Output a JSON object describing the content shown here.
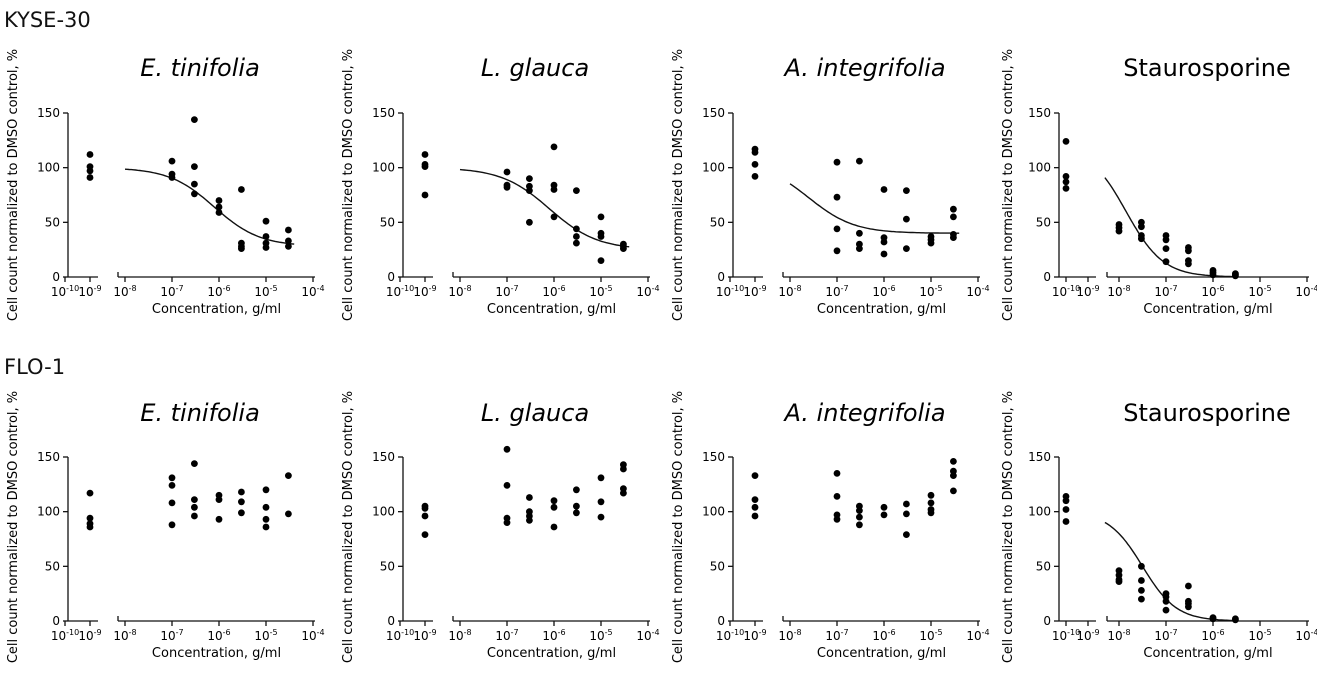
{
  "rows": [
    {
      "label": "KYSE-30",
      "panels": [
        {
          "title": "E. tinifolia",
          "italic": true,
          "fit": "sigmoid",
          "fit_params": {
            "top": 100,
            "bottom": 28,
            "log_ic50": -6.1,
            "hill": 0.9
          }
        },
        {
          "title": "L. glauca",
          "italic": true,
          "fit": "sigmoid",
          "fit_params": {
            "top": 100,
            "bottom": 25,
            "log_ic50": -6.1,
            "hill": 0.85
          }
        },
        {
          "title": "A. integrifolia",
          "italic": true,
          "fit": "sigmoid",
          "fit_params": {
            "top": 105,
            "bottom": 40,
            "log_ic50": -7.6,
            "hill": 0.9
          }
        },
        {
          "title": "Staurosporine",
          "italic": false,
          "fit": "sigmoid",
          "fit_params": {
            "top": 120,
            "bottom": 0,
            "log_ic50": -7.85,
            "hill": 1.1
          }
        }
      ]
    },
    {
      "label": "FLO-1",
      "panels": [
        {
          "title": "E. tinifolia",
          "italic": true,
          "fit": "none"
        },
        {
          "title": "L. glauca",
          "italic": true,
          "fit": "none"
        },
        {
          "title": "A. integrifolia",
          "italic": true,
          "fit": "none"
        },
        {
          "title": "Staurosporine",
          "italic": false,
          "fit": "sigmoid",
          "fit_params": {
            "top": 100,
            "bottom": 0,
            "log_ic50": -7.5,
            "hill": 1.2
          }
        }
      ]
    }
  ],
  "axes": {
    "ylabel": "Cell count normalized to DMSO control, %",
    "xlabel": "Concentration, g/ml",
    "y_ticks": [
      "0",
      "50",
      "100",
      "150"
    ],
    "x_ticks_left": [
      "10",
      "10"
    ],
    "x_ticks_left_exp": [
      "-10",
      "-9"
    ],
    "x_ticks_main": [
      "10",
      "10",
      "10",
      "10",
      "10"
    ],
    "x_ticks_main_exp": [
      "-8",
      "-7",
      "-6",
      "-5",
      "-4"
    ]
  },
  "chart_data": [
    {
      "type": "scatter",
      "title": "E. tinifolia",
      "row": "KYSE-30",
      "xlabel": "Concentration, g/ml",
      "ylabel": "Cell count normalized to DMSO control, %",
      "x_scale": "log",
      "ylim": [
        0,
        150
      ],
      "control_x": 1e-09,
      "points": [
        [
          1e-09,
          112
        ],
        [
          1e-09,
          101
        ],
        [
          1e-09,
          97
        ],
        [
          1e-09,
          91
        ],
        [
          1e-07,
          106
        ],
        [
          1e-07,
          94
        ],
        [
          1e-07,
          91
        ],
        [
          3e-07,
          144
        ],
        [
          3e-07,
          101
        ],
        [
          3e-07,
          85
        ],
        [
          3e-07,
          76
        ],
        [
          1e-06,
          70
        ],
        [
          1e-06,
          64
        ],
        [
          1e-06,
          59
        ],
        [
          3e-06,
          80
        ],
        [
          3e-06,
          31
        ],
        [
          3e-06,
          28
        ],
        [
          3e-06,
          26
        ],
        [
          1e-05,
          51
        ],
        [
          1e-05,
          37
        ],
        [
          1e-05,
          31
        ],
        [
          1e-05,
          27
        ],
        [
          3e-05,
          43
        ],
        [
          3e-05,
          33
        ],
        [
          3e-05,
          28
        ]
      ]
    },
    {
      "type": "scatter",
      "title": "L. glauca",
      "row": "KYSE-30",
      "xlabel": "Concentration, g/ml",
      "ylabel": "Cell count normalized to DMSO control, %",
      "x_scale": "log",
      "ylim": [
        0,
        150
      ],
      "control_x": 1e-09,
      "points": [
        [
          1e-09,
          112
        ],
        [
          1e-09,
          103
        ],
        [
          1e-09,
          101
        ],
        [
          1e-09,
          75
        ],
        [
          1e-07,
          96
        ],
        [
          1e-07,
          84
        ],
        [
          1e-07,
          82
        ],
        [
          3e-07,
          90
        ],
        [
          3e-07,
          83
        ],
        [
          3e-07,
          79
        ],
        [
          3e-07,
          50
        ],
        [
          1e-06,
          119
        ],
        [
          1e-06,
          84
        ],
        [
          1e-06,
          80
        ],
        [
          1e-06,
          55
        ],
        [
          3e-06,
          79
        ],
        [
          3e-06,
          44
        ],
        [
          3e-06,
          37
        ],
        [
          3e-06,
          31
        ],
        [
          1e-05,
          55
        ],
        [
          1e-05,
          40
        ],
        [
          1e-05,
          37
        ],
        [
          1e-05,
          15
        ],
        [
          3e-05,
          30
        ],
        [
          3e-05,
          28
        ],
        [
          3e-05,
          26
        ]
      ]
    },
    {
      "type": "scatter",
      "title": "A. integrifolia",
      "row": "KYSE-30",
      "xlabel": "Concentration, g/ml",
      "ylabel": "Cell count normalized to DMSO control, %",
      "x_scale": "log",
      "ylim": [
        0,
        150
      ],
      "control_x": 1e-09,
      "points": [
        [
          1e-09,
          117
        ],
        [
          1e-09,
          114
        ],
        [
          1e-09,
          103
        ],
        [
          1e-09,
          92
        ],
        [
          1e-07,
          105
        ],
        [
          1e-07,
          73
        ],
        [
          1e-07,
          44
        ],
        [
          1e-07,
          24
        ],
        [
          3e-07,
          106
        ],
        [
          3e-07,
          40
        ],
        [
          3e-07,
          30
        ],
        [
          3e-07,
          26
        ],
        [
          1e-06,
          80
        ],
        [
          1e-06,
          36
        ],
        [
          1e-06,
          32
        ],
        [
          1e-06,
          21
        ],
        [
          3e-06,
          79
        ],
        [
          3e-06,
          53
        ],
        [
          3e-06,
          26
        ],
        [
          1e-05,
          37
        ],
        [
          1e-05,
          34
        ],
        [
          1e-05,
          31
        ],
        [
          3e-05,
          62
        ],
        [
          3e-05,
          55
        ],
        [
          3e-05,
          39
        ],
        [
          3e-05,
          36
        ]
      ]
    },
    {
      "type": "scatter",
      "title": "Staurosporine",
      "row": "KYSE-30",
      "xlabel": "Concentration, g/ml",
      "ylabel": "Cell count normalized to DMSO control, %",
      "x_scale": "log",
      "ylim": [
        0,
        150
      ],
      "control_x": 1e-10,
      "points": [
        [
          1e-10,
          124
        ],
        [
          1e-10,
          92
        ],
        [
          1e-10,
          87
        ],
        [
          1e-10,
          81
        ],
        [
          1e-08,
          48
        ],
        [
          1e-08,
          45
        ],
        [
          1e-08,
          42
        ],
        [
          3e-08,
          50
        ],
        [
          3e-08,
          46
        ],
        [
          3e-08,
          38
        ],
        [
          3e-08,
          35
        ],
        [
          1e-07,
          38
        ],
        [
          1e-07,
          34
        ],
        [
          1e-07,
          26
        ],
        [
          1e-07,
          14
        ],
        [
          3e-07,
          27
        ],
        [
          3e-07,
          24
        ],
        [
          3e-07,
          15
        ],
        [
          3e-07,
          12
        ],
        [
          1e-06,
          6
        ],
        [
          1e-06,
          4
        ],
        [
          1e-06,
          2
        ],
        [
          3e-06,
          3
        ],
        [
          3e-06,
          2
        ],
        [
          3e-06,
          1
        ]
      ]
    },
    {
      "type": "scatter",
      "title": "E. tinifolia",
      "row": "FLO-1",
      "xlabel": "Concentration, g/ml",
      "ylabel": "Cell count normalized to DMSO control, %",
      "x_scale": "log",
      "ylim": [
        0,
        150
      ],
      "control_x": 1e-09,
      "points": [
        [
          1e-09,
          117
        ],
        [
          1e-09,
          94
        ],
        [
          1e-09,
          89
        ],
        [
          1e-09,
          86
        ],
        [
          1e-07,
          131
        ],
        [
          1e-07,
          124
        ],
        [
          1e-07,
          108
        ],
        [
          1e-07,
          88
        ],
        [
          3e-07,
          144
        ],
        [
          3e-07,
          111
        ],
        [
          3e-07,
          104
        ],
        [
          3e-07,
          96
        ],
        [
          1e-06,
          115
        ],
        [
          1e-06,
          111
        ],
        [
          1e-06,
          93
        ],
        [
          3e-06,
          118
        ],
        [
          3e-06,
          109
        ],
        [
          3e-06,
          99
        ],
        [
          1e-05,
          120
        ],
        [
          1e-05,
          104
        ],
        [
          1e-05,
          93
        ],
        [
          1e-05,
          86
        ],
        [
          3e-05,
          133
        ],
        [
          3e-05,
          98
        ]
      ]
    },
    {
      "type": "scatter",
      "title": "L. glauca",
      "row": "FLO-1",
      "xlabel": "Concentration, g/ml",
      "ylabel": "Cell count normalized to DMSO control, %",
      "x_scale": "log",
      "ylim": [
        0,
        150
      ],
      "control_x": 1e-09,
      "points": [
        [
          1e-09,
          105
        ],
        [
          1e-09,
          103
        ],
        [
          1e-09,
          96
        ],
        [
          1e-09,
          79
        ],
        [
          1e-07,
          157
        ],
        [
          1e-07,
          124
        ],
        [
          1e-07,
          94
        ],
        [
          1e-07,
          90
        ],
        [
          3e-07,
          113
        ],
        [
          3e-07,
          100
        ],
        [
          3e-07,
          96
        ],
        [
          3e-07,
          92
        ],
        [
          1e-06,
          110
        ],
        [
          1e-06,
          104
        ],
        [
          1e-06,
          86
        ],
        [
          3e-06,
          120
        ],
        [
          3e-06,
          105
        ],
        [
          3e-06,
          99
        ],
        [
          1e-05,
          131
        ],
        [
          1e-05,
          109
        ],
        [
          1e-05,
          95
        ],
        [
          3e-05,
          143
        ],
        [
          3e-05,
          139
        ],
        [
          3e-05,
          121
        ],
        [
          3e-05,
          117
        ]
      ]
    },
    {
      "type": "scatter",
      "title": "A. integrifolia",
      "row": "FLO-1",
      "xlabel": "Concentration, g/ml",
      "ylabel": "Cell count normalized to DMSO control, %",
      "x_scale": "log",
      "ylim": [
        0,
        150
      ],
      "control_x": 1e-09,
      "points": [
        [
          1e-09,
          133
        ],
        [
          1e-09,
          111
        ],
        [
          1e-09,
          104
        ],
        [
          1e-09,
          96
        ],
        [
          1e-07,
          135
        ],
        [
          1e-07,
          114
        ],
        [
          1e-07,
          97
        ],
        [
          1e-07,
          93
        ],
        [
          3e-07,
          105
        ],
        [
          3e-07,
          101
        ],
        [
          3e-07,
          95
        ],
        [
          3e-07,
          88
        ],
        [
          1e-06,
          104
        ],
        [
          1e-06,
          97
        ],
        [
          3e-06,
          107
        ],
        [
          3e-06,
          98
        ],
        [
          3e-06,
          79
        ],
        [
          1e-05,
          115
        ],
        [
          1e-05,
          108
        ],
        [
          1e-05,
          102
        ],
        [
          1e-05,
          99
        ],
        [
          3e-05,
          146
        ],
        [
          3e-05,
          137
        ],
        [
          3e-05,
          133
        ],
        [
          3e-05,
          119
        ]
      ]
    },
    {
      "type": "scatter",
      "title": "Staurosporine",
      "row": "FLO-1",
      "xlabel": "Concentration, g/ml",
      "ylabel": "Cell count normalized to DMSO control, %",
      "x_scale": "log",
      "ylim": [
        0,
        150
      ],
      "control_x": 1e-10,
      "points": [
        [
          1e-10,
          114
        ],
        [
          1e-10,
          110
        ],
        [
          1e-10,
          102
        ],
        [
          1e-10,
          91
        ],
        [
          1e-08,
          46
        ],
        [
          1e-08,
          42
        ],
        [
          1e-08,
          38
        ],
        [
          1e-08,
          36
        ],
        [
          3e-08,
          50
        ],
        [
          3e-08,
          37
        ],
        [
          3e-08,
          28
        ],
        [
          3e-08,
          20
        ],
        [
          1e-07,
          25
        ],
        [
          1e-07,
          22
        ],
        [
          1e-07,
          18
        ],
        [
          1e-07,
          10
        ],
        [
          3e-07,
          32
        ],
        [
          3e-07,
          18
        ],
        [
          3e-07,
          16
        ],
        [
          3e-07,
          13
        ],
        [
          1e-06,
          3
        ],
        [
          1e-06,
          2
        ],
        [
          3e-06,
          2
        ],
        [
          3e-06,
          1
        ]
      ]
    }
  ]
}
